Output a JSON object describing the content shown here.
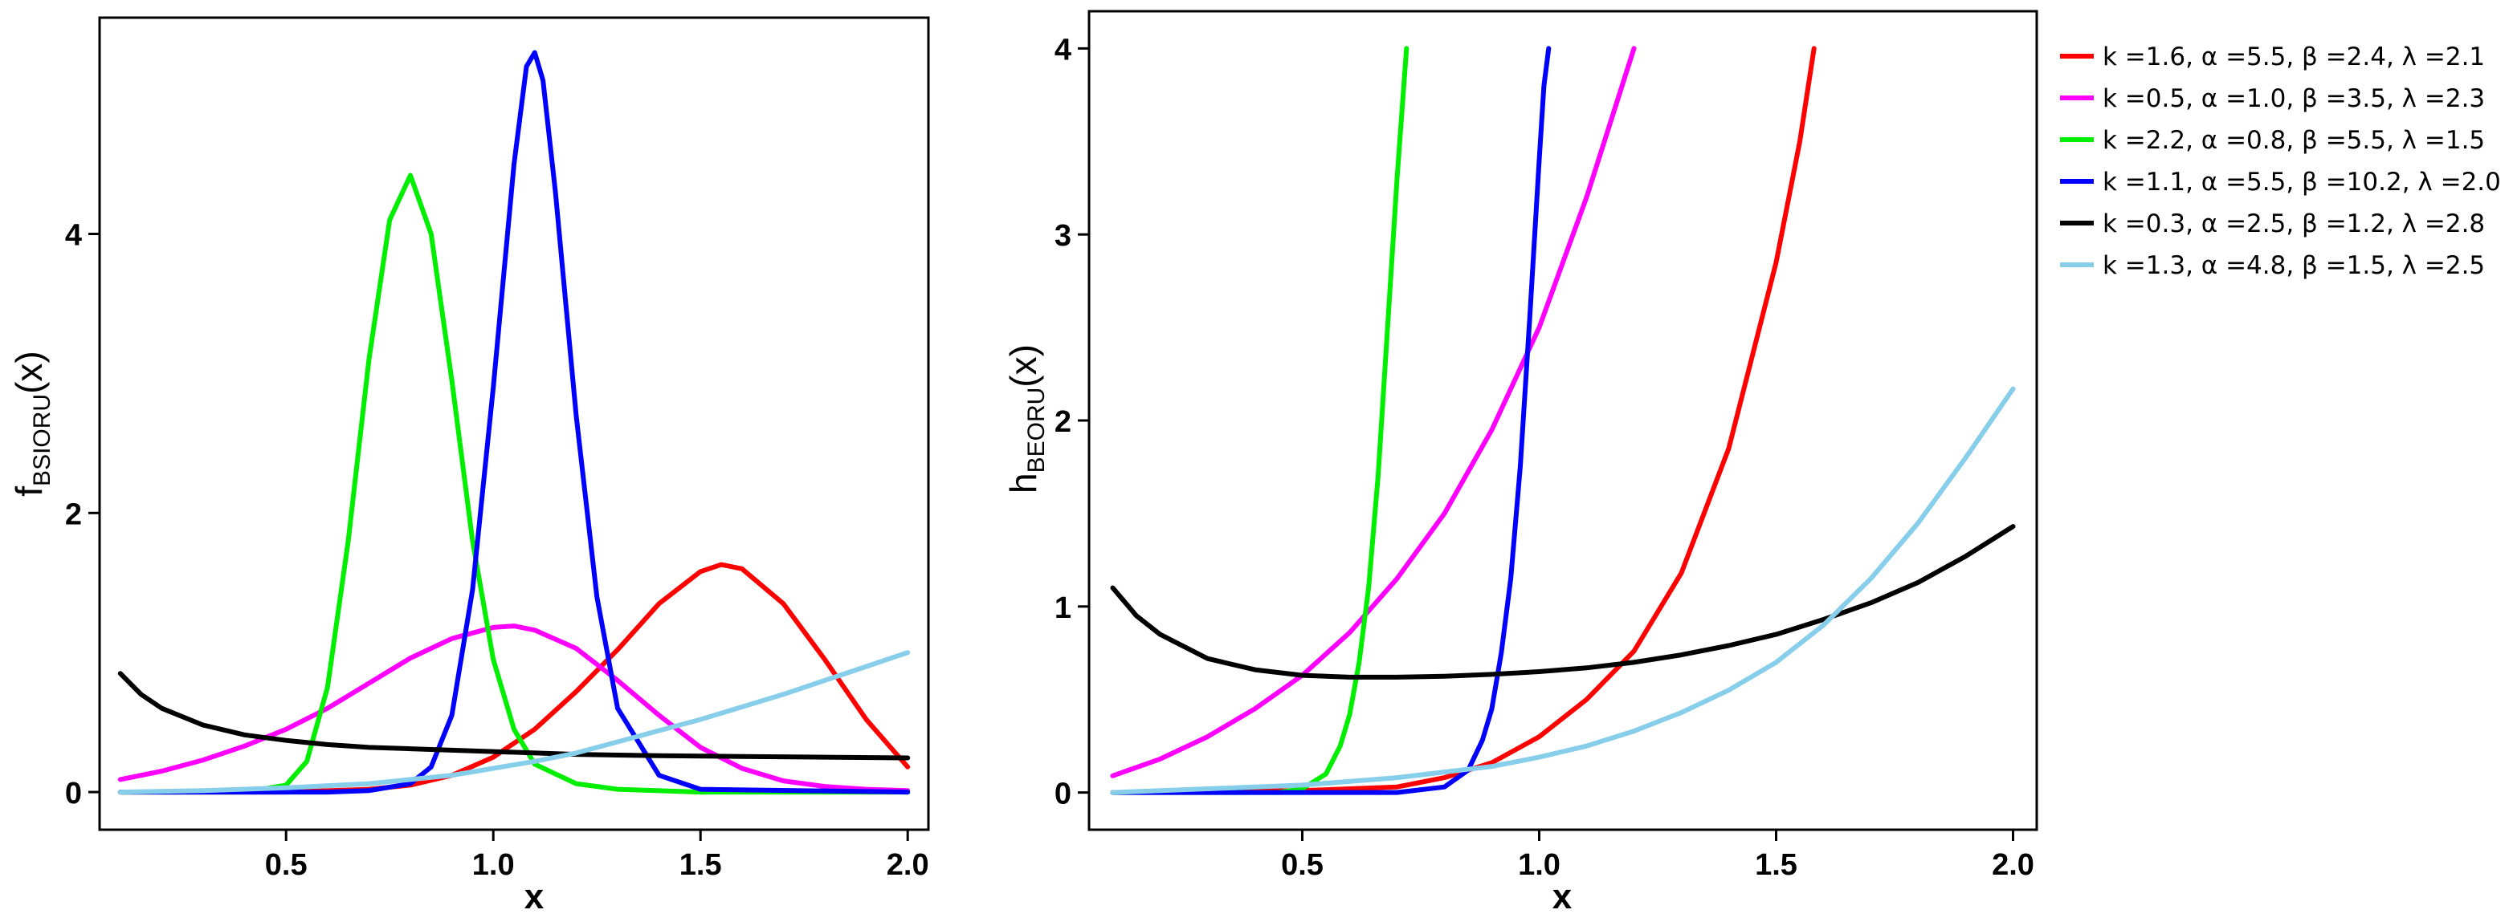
{
  "chart_data": [
    {
      "type": "line",
      "panel": "left",
      "xlabel": "x",
      "ylabel_main": "f",
      "ylabel_sub": "BSIORU",
      "ylabel_arg": "(x)",
      "xlim": [
        0.05,
        2.05
      ],
      "ylim": [
        -0.27,
        5.55
      ],
      "xticks": [
        0.5,
        1.0,
        1.5,
        2.0
      ],
      "xtick_labels": [
        "0.5",
        "1.0",
        "1.5",
        "2.0"
      ],
      "yticks": [
        0,
        2,
        4
      ],
      "ytick_labels": [
        "0",
        "2",
        "4"
      ],
      "grid": false,
      "series": [
        {
          "name": "k =1.6, α =5.5, β =2.4, λ =2.1",
          "color": "#FF0000",
          "x": [
            0.1,
            0.3,
            0.5,
            0.7,
            0.8,
            0.9,
            1.0,
            1.1,
            1.2,
            1.3,
            1.4,
            1.5,
            1.55,
            1.6,
            1.7,
            1.8,
            1.9,
            2.0
          ],
          "y": [
            0.0,
            0.0,
            0.0,
            0.02,
            0.05,
            0.12,
            0.25,
            0.45,
            0.72,
            1.02,
            1.35,
            1.58,
            1.63,
            1.6,
            1.35,
            0.95,
            0.52,
            0.18
          ]
        },
        {
          "name": "k =0.5, α =1.0, β =3.5, λ =2.3",
          "color": "#FF00FF",
          "x": [
            0.1,
            0.2,
            0.3,
            0.4,
            0.5,
            0.6,
            0.7,
            0.8,
            0.9,
            1.0,
            1.05,
            1.1,
            1.2,
            1.3,
            1.4,
            1.5,
            1.6,
            1.7,
            1.8,
            1.9,
            2.0
          ],
          "y": [
            0.09,
            0.15,
            0.23,
            0.33,
            0.45,
            0.6,
            0.78,
            0.96,
            1.1,
            1.18,
            1.19,
            1.16,
            1.03,
            0.8,
            0.55,
            0.32,
            0.17,
            0.08,
            0.04,
            0.02,
            0.01
          ]
        },
        {
          "name": "k =2.2, α =0.8, β =5.5, λ =1.5",
          "color": "#00EE00",
          "x": [
            0.1,
            0.4,
            0.5,
            0.55,
            0.6,
            0.65,
            0.7,
            0.75,
            0.8,
            0.85,
            0.9,
            0.95,
            1.0,
            1.05,
            1.1,
            1.2,
            1.3,
            1.5,
            2.0
          ],
          "y": [
            0.0,
            0.0,
            0.05,
            0.22,
            0.75,
            1.8,
            3.1,
            4.1,
            4.42,
            4.0,
            2.95,
            1.8,
            0.95,
            0.45,
            0.2,
            0.06,
            0.02,
            0.0,
            0.0
          ]
        },
        {
          "name": "k =1.1, α =5.5, β =10.2, λ =2.0",
          "color": "#0000FF",
          "x": [
            0.1,
            0.6,
            0.7,
            0.8,
            0.85,
            0.9,
            0.95,
            1.0,
            1.05,
            1.08,
            1.1,
            1.12,
            1.15,
            1.2,
            1.25,
            1.3,
            1.4,
            1.5,
            2.0
          ],
          "y": [
            0.0,
            0.0,
            0.01,
            0.06,
            0.18,
            0.55,
            1.45,
            2.9,
            4.5,
            5.2,
            5.3,
            5.1,
            4.3,
            2.7,
            1.4,
            0.6,
            0.12,
            0.02,
            0.0
          ]
        },
        {
          "name": "k =0.3, α =2.5, β =1.2, λ =2.8",
          "color": "#000000",
          "x": [
            0.1,
            0.15,
            0.2,
            0.3,
            0.4,
            0.5,
            0.6,
            0.7,
            0.8,
            0.9,
            1.0,
            1.2,
            1.4,
            1.6,
            1.8,
            2.0
          ],
          "y": [
            0.85,
            0.7,
            0.6,
            0.48,
            0.41,
            0.37,
            0.34,
            0.32,
            0.31,
            0.3,
            0.29,
            0.27,
            0.26,
            0.255,
            0.25,
            0.245
          ]
        },
        {
          "name": "k =1.3, α =4.8, β =1.5, λ =2.5",
          "color": "#87CEEB",
          "x": [
            0.1,
            0.3,
            0.5,
            0.7,
            0.9,
            1.0,
            1.1,
            1.2,
            1.3,
            1.4,
            1.5,
            1.6,
            1.7,
            1.8,
            1.9,
            2.0
          ],
          "y": [
            0.0,
            0.01,
            0.03,
            0.06,
            0.12,
            0.17,
            0.22,
            0.28,
            0.36,
            0.44,
            0.52,
            0.61,
            0.7,
            0.8,
            0.9,
            1.0
          ]
        }
      ]
    },
    {
      "type": "line",
      "panel": "right",
      "xlabel": "x",
      "ylabel_main": "h",
      "ylabel_sub": "BEORU",
      "ylabel_arg": "(x)",
      "xlim": [
        0.05,
        2.05
      ],
      "ylim": [
        -0.2,
        4.2
      ],
      "xticks": [
        0.5,
        1.0,
        1.5,
        2.0
      ],
      "xtick_labels": [
        "0.5",
        "1.0",
        "1.5",
        "2.0"
      ],
      "yticks": [
        0,
        1,
        2,
        3,
        4
      ],
      "ytick_labels": [
        "0",
        "1",
        "2",
        "3",
        "4"
      ],
      "grid": false,
      "series": [
        {
          "name": "k =1.6, α =5.5, β =2.4, λ =2.1",
          "color": "#FF0000",
          "x": [
            0.1,
            0.5,
            0.7,
            0.8,
            0.9,
            1.0,
            1.1,
            1.2,
            1.3,
            1.4,
            1.5,
            1.55,
            1.58
          ],
          "y": [
            0.0,
            0.01,
            0.03,
            0.08,
            0.16,
            0.3,
            0.5,
            0.76,
            1.18,
            1.85,
            2.85,
            3.5,
            4.0
          ]
        },
        {
          "name": "k =0.5, α =1.0, β =3.5, λ =2.3",
          "color": "#FF00FF",
          "x": [
            0.1,
            0.2,
            0.3,
            0.4,
            0.5,
            0.6,
            0.7,
            0.8,
            0.9,
            1.0,
            1.1,
            1.2
          ],
          "y": [
            0.09,
            0.18,
            0.3,
            0.45,
            0.63,
            0.86,
            1.15,
            1.5,
            1.95,
            2.5,
            3.2,
            4.0
          ]
        },
        {
          "name": "k =2.2, α =0.8, β =5.5, λ =1.5",
          "color": "#00EE00",
          "x": [
            0.1,
            0.45,
            0.5,
            0.55,
            0.58,
            0.6,
            0.62,
            0.64,
            0.66,
            0.68,
            0.7,
            0.72
          ],
          "y": [
            0.0,
            0.0,
            0.02,
            0.1,
            0.25,
            0.42,
            0.7,
            1.1,
            1.7,
            2.5,
            3.3,
            4.0
          ]
        },
        {
          "name": "k =1.1, α =5.5, β =10.2, λ =2.0",
          "color": "#0000FF",
          "x": [
            0.1,
            0.7,
            0.8,
            0.85,
            0.88,
            0.9,
            0.92,
            0.94,
            0.96,
            0.98,
            1.0,
            1.01,
            1.02
          ],
          "y": [
            0.0,
            0.0,
            0.03,
            0.12,
            0.28,
            0.45,
            0.75,
            1.15,
            1.75,
            2.55,
            3.4,
            3.8,
            4.0
          ]
        },
        {
          "name": "k =0.3, α =2.5, β =1.2, λ =2.8",
          "color": "#000000",
          "x": [
            0.1,
            0.15,
            0.2,
            0.3,
            0.4,
            0.5,
            0.6,
            0.7,
            0.8,
            0.9,
            1.0,
            1.1,
            1.2,
            1.3,
            1.4,
            1.5,
            1.6,
            1.7,
            1.8,
            1.9,
            2.0
          ],
          "y": [
            1.1,
            0.95,
            0.85,
            0.72,
            0.66,
            0.63,
            0.62,
            0.62,
            0.625,
            0.635,
            0.65,
            0.67,
            0.7,
            0.74,
            0.79,
            0.85,
            0.93,
            1.02,
            1.13,
            1.27,
            1.43
          ]
        },
        {
          "name": "k =1.3, α =4.8, β =1.5, λ =2.5",
          "color": "#87CEEB",
          "x": [
            0.1,
            0.3,
            0.5,
            0.7,
            0.9,
            1.0,
            1.1,
            1.2,
            1.3,
            1.4,
            1.5,
            1.6,
            1.7,
            1.8,
            1.9,
            2.0
          ],
          "y": [
            0.0,
            0.02,
            0.04,
            0.08,
            0.14,
            0.19,
            0.25,
            0.33,
            0.43,
            0.55,
            0.7,
            0.9,
            1.15,
            1.45,
            1.8,
            2.17
          ]
        }
      ]
    }
  ],
  "legend": {
    "position": "right",
    "entries": [
      {
        "label": "k =1.6, α =5.5, β =2.4, λ =2.1",
        "color": "#FF0000"
      },
      {
        "label": "k =0.5, α =1.0, β =3.5, λ =2.3",
        "color": "#FF00FF"
      },
      {
        "label": "k =2.2, α =0.8, β =5.5, λ =1.5",
        "color": "#00EE00"
      },
      {
        "label": "k =1.1, α =5.5, β =10.2, λ =2.0",
        "color": "#0000FF"
      },
      {
        "label": "k =0.3, α =2.5, β =1.2, λ =2.8",
        "color": "#000000"
      },
      {
        "label": "k =1.3, α =4.8, β =1.5, λ =2.5",
        "color": "#87CEEB"
      }
    ]
  }
}
